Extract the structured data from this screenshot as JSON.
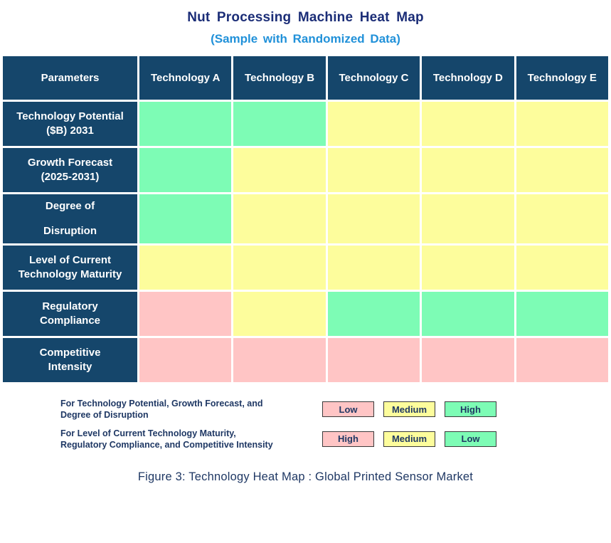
{
  "title": "Nut Processing Machine Heat Map",
  "subtitle": "(Sample with Randomized Data)",
  "caption": "Figure 3: Technology Heat Map :  Global Printed Sensor Market",
  "colors": {
    "header_bg": "#15466B",
    "green_high": "#7DFCB5",
    "yellow_medium": "#FDFD9C",
    "pink_low": "#FFC5C5",
    "title_navy": "#1B2D77",
    "subtitle_blue": "#2191D9",
    "legend_text_navy": "#1F3864"
  },
  "chart_data": {
    "type": "heatmap",
    "title": "Nut Processing Machine Heat Map",
    "subtitle": "(Sample with Randomized Data)",
    "corner_label": "Parameters",
    "columns": [
      "Technology A",
      "Technology B",
      "Technology C",
      "Technology D",
      "Technology E"
    ],
    "color_scale_note": "green/yellow/pink cell fills; meaning of color flips between first three and last three parameters",
    "rows": [
      {
        "label": "Technology Potential\n($B) 2031",
        "spaced": false,
        "cells": [
          {
            "color": "green",
            "value": "High"
          },
          {
            "color": "green",
            "value": "High"
          },
          {
            "color": "yellow",
            "value": "Medium"
          },
          {
            "color": "yellow",
            "value": "Medium"
          },
          {
            "color": "yellow",
            "value": "Medium"
          }
        ]
      },
      {
        "label": "Growth Forecast\n(2025-2031)",
        "spaced": false,
        "cells": [
          {
            "color": "green",
            "value": "High"
          },
          {
            "color": "yellow",
            "value": "Medium"
          },
          {
            "color": "yellow",
            "value": "Medium"
          },
          {
            "color": "yellow",
            "value": "Medium"
          },
          {
            "color": "yellow",
            "value": "Medium"
          }
        ]
      },
      {
        "label": "Degree of\nDisruption",
        "spaced": true,
        "cells": [
          {
            "color": "green",
            "value": "High"
          },
          {
            "color": "yellow",
            "value": "Medium"
          },
          {
            "color": "yellow",
            "value": "Medium"
          },
          {
            "color": "yellow",
            "value": "Medium"
          },
          {
            "color": "yellow",
            "value": "Medium"
          }
        ]
      },
      {
        "label": "Level of Current\nTechnology Maturity",
        "spaced": false,
        "cells": [
          {
            "color": "yellow",
            "value": "Medium"
          },
          {
            "color": "yellow",
            "value": "Medium"
          },
          {
            "color": "yellow",
            "value": "Medium"
          },
          {
            "color": "yellow",
            "value": "Medium"
          },
          {
            "color": "yellow",
            "value": "Medium"
          }
        ]
      },
      {
        "label": "Regulatory\nCompliance",
        "spaced": false,
        "cells": [
          {
            "color": "pink",
            "value": "High"
          },
          {
            "color": "yellow",
            "value": "Medium"
          },
          {
            "color": "green",
            "value": "Low"
          },
          {
            "color": "green",
            "value": "Low"
          },
          {
            "color": "green",
            "value": "Low"
          }
        ]
      },
      {
        "label": "Competitive\nIntensity",
        "spaced": false,
        "cells": [
          {
            "color": "pink",
            "value": "High"
          },
          {
            "color": "pink",
            "value": "High"
          },
          {
            "color": "pink",
            "value": "High"
          },
          {
            "color": "pink",
            "value": "High"
          },
          {
            "color": "pink",
            "value": "High"
          }
        ]
      }
    ]
  },
  "legend": {
    "rows": [
      {
        "label": "For Technology Potential, Growth Forecast, and\nDegree of Disruption",
        "items": [
          {
            "text": "Low",
            "color": "pink"
          },
          {
            "text": "Medium",
            "color": "yellow"
          },
          {
            "text": "High",
            "color": "green"
          }
        ]
      },
      {
        "label": "For Level of Current Technology Maturity,\nRegulatory Compliance, and Competitive Intensity",
        "items": [
          {
            "text": "High",
            "color": "pink"
          },
          {
            "text": "Medium",
            "color": "yellow"
          },
          {
            "text": "Low",
            "color": "green"
          }
        ]
      }
    ]
  }
}
